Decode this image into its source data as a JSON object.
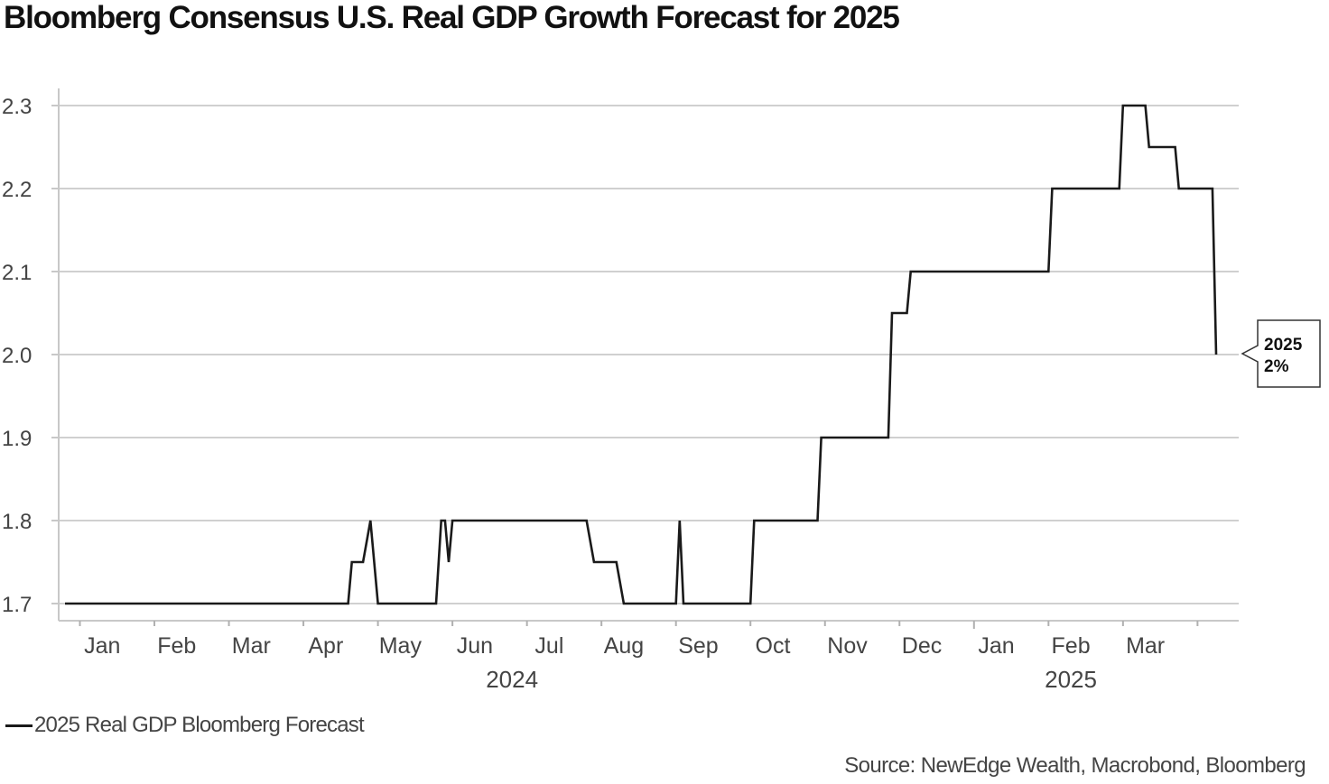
{
  "chart_data": {
    "type": "line",
    "title": "Bloomberg Consensus U.S. Real GDP Growth Forecast for 2025",
    "ylim": [
      1.7,
      2.3
    ],
    "yticks": [
      "2.3",
      "2.2",
      "2.1",
      "2.0",
      "1.9",
      "1.8",
      "1.7"
    ],
    "ytick_values": [
      2.3,
      2.2,
      2.1,
      2.0,
      1.9,
      1.8,
      1.7
    ],
    "xlim": [
      0,
      15.45
    ],
    "x_month_labels": [
      "Jan",
      "Feb",
      "Mar",
      "Apr",
      "May",
      "Jun",
      "Jul",
      "Aug",
      "Sep",
      "Oct",
      "Nov",
      "Dec",
      "Jan",
      "Feb",
      "Mar"
    ],
    "x_year_labels": [
      {
        "label": "2024",
        "center": 6.0
      },
      {
        "label": "2025",
        "center": 13.5
      }
    ],
    "x_unit": "months since Jan 1, 2024",
    "series": [
      {
        "name": "2025 Real GDP Bloomberg Forecast",
        "color": "#1a1a1a",
        "x": [
          0.0,
          3.8,
          3.85,
          4.0,
          4.1,
          4.2,
          4.98,
          5.05,
          5.1,
          5.15,
          5.2,
          7.0,
          7.1,
          7.4,
          7.5,
          8.2,
          8.25,
          8.3,
          9.2,
          9.25,
          10.1,
          10.15,
          11.05,
          11.1,
          11.3,
          11.35,
          13.2,
          13.25,
          14.15,
          14.2,
          14.5,
          14.55,
          14.9,
          14.95,
          15.4,
          15.45
        ],
        "y": [
          1.7,
          1.7,
          1.75,
          1.75,
          1.8,
          1.7,
          1.7,
          1.8,
          1.8,
          1.75,
          1.8,
          1.8,
          1.75,
          1.75,
          1.7,
          1.7,
          1.8,
          1.7,
          1.7,
          1.8,
          1.8,
          1.9,
          1.9,
          2.05,
          2.05,
          2.1,
          2.1,
          2.2,
          2.2,
          2.3,
          2.3,
          2.25,
          2.25,
          2.2,
          2.2,
          2.0
        ]
      }
    ],
    "last_value_callout": {
      "year": "2025",
      "value": "2%"
    },
    "grid": true,
    "legend_position": "bottom-left"
  },
  "legend": {
    "label": "2025 Real GDP Bloomberg Forecast"
  },
  "source": "Source: NewEdge Wealth, Macrobond, Bloomberg"
}
